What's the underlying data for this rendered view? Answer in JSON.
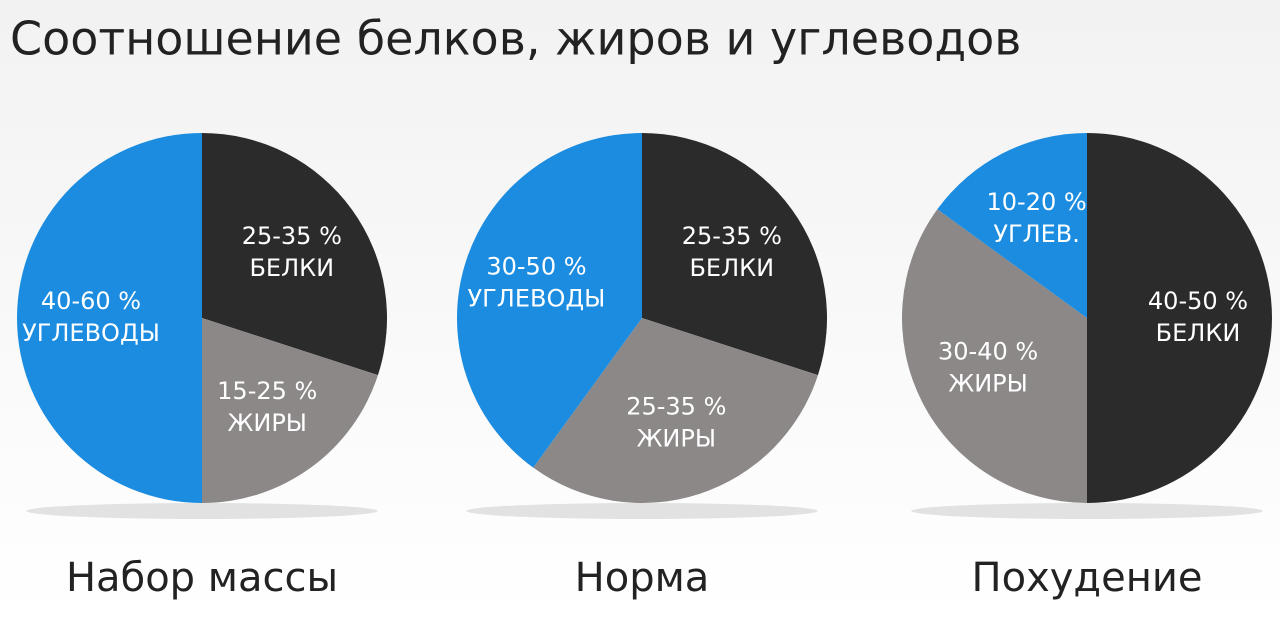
{
  "title": "Соотношение белков, жиров и углеводов",
  "chart_data": [
    {
      "type": "pie",
      "title": "Набор массы",
      "categories": [
        "БЕЛКИ",
        "ЖИРЫ",
        "УГЛЕВОДЫ"
      ],
      "values": [
        30,
        20,
        50
      ],
      "value_labels": [
        "25-35 %",
        "15-25 %",
        "40-60 %"
      ],
      "colors": [
        "#2b2b2b",
        "#8c8888",
        "#1b8ce0"
      ]
    },
    {
      "type": "pie",
      "title": "Норма",
      "categories": [
        "БЕЛКИ",
        "ЖИРЫ",
        "УГЛЕВОДЫ"
      ],
      "values": [
        30,
        30,
        40
      ],
      "value_labels": [
        "25-35 %",
        "25-35 %",
        "30-50 %"
      ],
      "colors": [
        "#2b2b2b",
        "#8c8888",
        "#1b8ce0"
      ]
    },
    {
      "type": "pie",
      "title": "Похудение",
      "categories": [
        "БЕЛКИ",
        "ЖИРЫ",
        "УГЛЕВ."
      ],
      "values": [
        50,
        35,
        15
      ],
      "value_labels": [
        "40-50 %",
        "30-40 %",
        "10-20 %"
      ],
      "colors": [
        "#2b2b2b",
        "#8c8888",
        "#1b8ce0"
      ]
    }
  ]
}
